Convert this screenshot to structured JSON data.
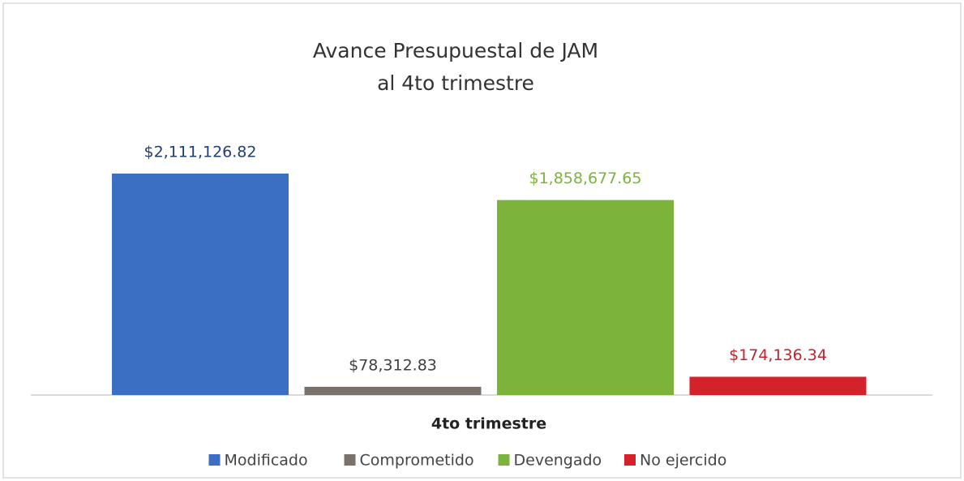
{
  "chart_data": {
    "type": "bar",
    "title": "Avance Presupuestal de JAM",
    "subtitle": "al 4to trimestre",
    "categories": [
      "4to trimestre"
    ],
    "series": [
      {
        "name": "Modificado",
        "color": "#3b6fc3",
        "label_color": "#1f3d78",
        "values": [
          2111126.82
        ],
        "value_labels": [
          "$2,111,126.82"
        ]
      },
      {
        "name": "Comprometido",
        "color": "#7b716b",
        "label_color": "#404040",
        "values": [
          78312.83
        ],
        "value_labels": [
          "$78,312.83"
        ]
      },
      {
        "name": "Devengado",
        "color": "#7cb43b",
        "label_color": "#7cb43b",
        "values": [
          1858677.65
        ],
        "value_labels": [
          "$1,858,677.65"
        ]
      },
      {
        "name": "No ejercido",
        "color": "#d3222a",
        "label_color": "#c8202a",
        "values": [
          174136.34
        ],
        "value_labels": [
          "$174,136.34"
        ]
      }
    ],
    "legend": "bottom"
  }
}
